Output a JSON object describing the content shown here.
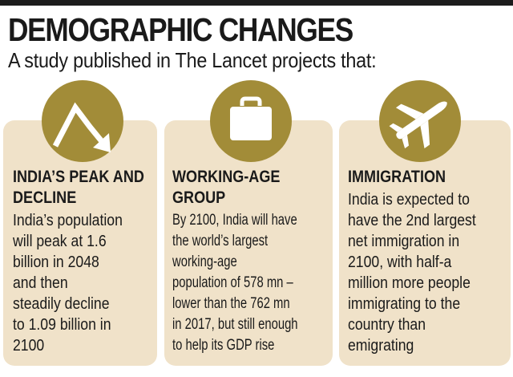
{
  "header": {
    "title": "DEMOGRAPHIC CHANGES",
    "subtitle": "A study published in The Lancet projects that:"
  },
  "columns": [
    {
      "icon": "declining-arrow-icon",
      "title_lines": [
        "INDIA’S PEAK AND",
        "DECLINE"
      ],
      "body_lines": [
        "India’s population",
        "will peak at 1.6",
        "billion in 2048",
        "and then",
        "steadily decline",
        "to 1.09 billion in",
        "2100"
      ]
    },
    {
      "icon": "briefcase-icon",
      "title_lines": [
        "WORKING-AGE",
        "GROUP"
      ],
      "body_lines": [
        "By 2100, India will have",
        "the world’s largest",
        "working-age",
        "population of 578 mn –",
        "lower than the 762 mn",
        "in 2017, but still enough",
        "to help its GDP rise"
      ]
    },
    {
      "icon": "airplane-icon",
      "title_lines": [
        "IMMIGRATION"
      ],
      "body_lines": [
        "India is expected to",
        "have the 2nd largest",
        "net immigration in",
        "2100, with half-a",
        "million more people",
        "immigrating to the",
        "country than",
        "emigrating"
      ]
    }
  ],
  "colors": {
    "panel": "#f0e2c9",
    "badge": "#a28c38",
    "text": "#1a1a1a",
    "rule": "#1c1c1c"
  }
}
